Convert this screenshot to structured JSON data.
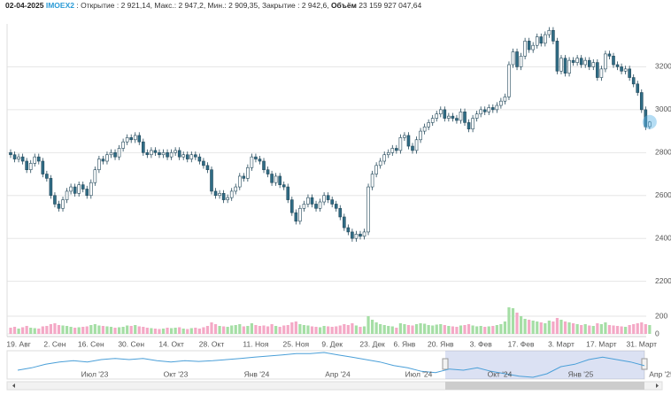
{
  "header": {
    "date": "02-04-2025",
    "ticker": "IMOEX2",
    "info": ": Открытие : 2 921,14, Макс.: 2 947,2, Мин.: 2 909,35, Закрытие : 2 942,6,",
    "volume_label": "Объём",
    "volume": "23 159 927 047,64"
  },
  "chart_data": {
    "type": "candlestick",
    "categories": [
      null,
      null,
      "19. Авг",
      null,
      null,
      null,
      null,
      null,
      null,
      null,
      null,
      "2. Сен",
      null,
      null,
      null,
      null,
      null,
      null,
      null,
      null,
      "16. Сен",
      null,
      null,
      null,
      null,
      null,
      null,
      null,
      null,
      null,
      "30. Сен",
      null,
      null,
      null,
      null,
      null,
      null,
      null,
      null,
      null,
      "14. Окт",
      null,
      null,
      null,
      null,
      null,
      null,
      null,
      null,
      null,
      "28. Окт",
      null,
      null,
      null,
      null,
      null,
      null,
      null,
      null,
      null,
      null,
      "11. Ноя",
      null,
      null,
      null,
      null,
      null,
      null,
      null,
      null,
      null,
      "25. Ноя",
      null,
      null,
      null,
      null,
      null,
      null,
      null,
      null,
      "9. Дек",
      null,
      null,
      null,
      null,
      null,
      null,
      null,
      null,
      null,
      "23. Дек",
      null,
      null,
      null,
      null,
      null,
      null,
      null,
      "6. Янв",
      null,
      null,
      null,
      null,
      null,
      null,
      null,
      null,
      "20. Янв",
      null,
      null,
      null,
      null,
      null,
      null,
      null,
      null,
      null,
      "3. Фев",
      null,
      null,
      null,
      null,
      null,
      null,
      null,
      null,
      null,
      "17. Фев",
      null,
      null,
      null,
      null,
      null,
      null,
      null,
      null,
      null,
      "3. Март",
      null,
      null,
      null,
      null,
      null,
      null,
      null,
      null,
      null,
      "17. Март",
      null,
      null,
      null,
      null,
      null,
      null,
      null,
      null,
      null,
      "31. Март",
      null,
      null
    ],
    "open": [
      2800,
      2790,
      2770,
      2780,
      2760,
      2720,
      2750,
      2780,
      2760,
      2700,
      2680,
      2600,
      2560,
      2540,
      2580,
      2620,
      2640,
      2610,
      2650,
      2630,
      2600,
      2660,
      2720,
      2770,
      2760,
      2790,
      2800,
      2780,
      2820,
      2850,
      2870,
      2860,
      2880,
      2850,
      2800,
      2790,
      2810,
      2800,
      2790,
      2800,
      2780,
      2800,
      2810,
      2780,
      2790,
      2770,
      2790,
      2780,
      2760,
      2740,
      2720,
      2620,
      2600,
      2610,
      2580,
      2590,
      2620,
      2640,
      2690,
      2680,
      2730,
      2780,
      2770,
      2760,
      2720,
      2700,
      2660,
      2690,
      2650,
      2640,
      2580,
      2520,
      2480,
      2540,
      2560,
      2590,
      2560,
      2540,
      2570,
      2600,
      2580,
      2560,
      2540,
      2500,
      2450,
      2430,
      2400,
      2420,
      2410,
      2430,
      2640,
      2700,
      2740,
      2760,
      2790,
      2800,
      2820,
      2810,
      2870,
      2880,
      2830,
      2810,
      2860,
      2900,
      2920,
      2940,
      2960,
      2980,
      3000,
      2960,
      2970,
      2960,
      2950,
      2990,
      2940,
      2910,
      2960,
      2980,
      3000,
      2990,
      3010,
      3000,
      3020,
      3040,
      3060,
      3210,
      3270,
      3200,
      3250,
      3320,
      3280,
      3300,
      3340,
      3310,
      3350,
      3370,
      3320,
      3180,
      3240,
      3170,
      3230,
      3220,
      3240,
      3210,
      3230,
      3200,
      3220,
      3150,
      3190,
      3260,
      3250,
      3210,
      3200,
      3180,
      3190,
      3150,
      3120,
      3080,
      3000,
      2921.14
    ],
    "high": [
      2815,
      2805,
      2795,
      2795,
      2775,
      2765,
      2795,
      2795,
      2775,
      2715,
      2695,
      2615,
      2575,
      2595,
      2635,
      2655,
      2655,
      2665,
      2665,
      2645,
      2675,
      2735,
      2785,
      2785,
      2805,
      2815,
      2815,
      2835,
      2865,
      2885,
      2885,
      2895,
      2895,
      2865,
      2815,
      2825,
      2825,
      2815,
      2815,
      2815,
      2815,
      2825,
      2825,
      2805,
      2805,
      2805,
      2805,
      2795,
      2775,
      2755,
      2735,
      2635,
      2625,
      2625,
      2605,
      2635,
      2655,
      2705,
      2705,
      2745,
      2795,
      2795,
      2785,
      2775,
      2735,
      2715,
      2705,
      2705,
      2665,
      2655,
      2595,
      2535,
      2555,
      2575,
      2605,
      2605,
      2575,
      2585,
      2615,
      2615,
      2595,
      2575,
      2555,
      2515,
      2465,
      2445,
      2435,
      2435,
      2445,
      2655,
      2715,
      2755,
      2775,
      2805,
      2815,
      2835,
      2835,
      2885,
      2895,
      2895,
      2845,
      2875,
      2915,
      2935,
      2955,
      2975,
      2995,
      3015,
      3015,
      2985,
      2985,
      2975,
      3005,
      3005,
      2955,
      2975,
      2995,
      3015,
      3015,
      3025,
      3025,
      3035,
      3055,
      3075,
      3225,
      3285,
      3285,
      3265,
      3335,
      3335,
      3315,
      3355,
      3355,
      3365,
      3385,
      3385,
      3335,
      3255,
      3255,
      3245,
      3245,
      3255,
      3255,
      3245,
      3245,
      3235,
      3235,
      3205,
      3275,
      3275,
      3265,
      3225,
      3215,
      3205,
      3205,
      3165,
      3135,
      3095,
      3015,
      2947.2
    ],
    "low": [
      2775,
      2755,
      2755,
      2745,
      2705,
      2705,
      2735,
      2745,
      2685,
      2665,
      2585,
      2545,
      2525,
      2525,
      2565,
      2605,
      2595,
      2595,
      2615,
      2585,
      2585,
      2645,
      2705,
      2745,
      2745,
      2775,
      2765,
      2765,
      2805,
      2835,
      2845,
      2845,
      2835,
      2785,
      2775,
      2775,
      2785,
      2775,
      2775,
      2765,
      2765,
      2785,
      2765,
      2765,
      2755,
      2755,
      2765,
      2745,
      2725,
      2705,
      2605,
      2585,
      2585,
      2565,
      2565,
      2575,
      2605,
      2625,
      2665,
      2665,
      2715,
      2755,
      2745,
      2705,
      2685,
      2645,
      2645,
      2635,
      2625,
      2565,
      2505,
      2465,
      2465,
      2525,
      2545,
      2545,
      2525,
      2525,
      2555,
      2565,
      2545,
      2525,
      2485,
      2435,
      2415,
      2385,
      2385,
      2395,
      2395,
      2415,
      2625,
      2685,
      2725,
      2745,
      2775,
      2785,
      2795,
      2795,
      2855,
      2815,
      2795,
      2795,
      2845,
      2885,
      2905,
      2925,
      2945,
      2965,
      2945,
      2945,
      2945,
      2935,
      2935,
      2925,
      2895,
      2895,
      2945,
      2965,
      2975,
      2975,
      2985,
      2985,
      3005,
      3025,
      3045,
      3195,
      3185,
      3185,
      3235,
      3265,
      3265,
      3285,
      3295,
      3295,
      3335,
      3305,
      3165,
      3165,
      3155,
      3155,
      3205,
      3205,
      3195,
      3195,
      3185,
      3185,
      3135,
      3135,
      3175,
      3235,
      3195,
      3185,
      3165,
      3165,
      3135,
      3105,
      3065,
      2985,
      2905,
      2909.35
    ],
    "close": [
      2790,
      2770,
      2780,
      2760,
      2720,
      2750,
      2780,
      2760,
      2700,
      2680,
      2600,
      2560,
      2540,
      2580,
      2620,
      2640,
      2610,
      2650,
      2630,
      2600,
      2660,
      2720,
      2770,
      2760,
      2790,
      2800,
      2780,
      2820,
      2850,
      2870,
      2860,
      2880,
      2850,
      2800,
      2790,
      2810,
      2800,
      2790,
      2800,
      2780,
      2800,
      2810,
      2780,
      2790,
      2770,
      2790,
      2780,
      2760,
      2740,
      2720,
      2620,
      2600,
      2610,
      2580,
      2590,
      2620,
      2640,
      2690,
      2680,
      2730,
      2780,
      2770,
      2760,
      2720,
      2700,
      2660,
      2690,
      2650,
      2640,
      2580,
      2520,
      2480,
      2540,
      2560,
      2590,
      2560,
      2540,
      2570,
      2600,
      2580,
      2560,
      2540,
      2500,
      2450,
      2430,
      2400,
      2420,
      2410,
      2430,
      2640,
      2700,
      2740,
      2760,
      2790,
      2800,
      2820,
      2810,
      2870,
      2880,
      2830,
      2810,
      2860,
      2900,
      2920,
      2940,
      2960,
      2980,
      3000,
      2960,
      2970,
      2960,
      2950,
      2990,
      2940,
      2910,
      2960,
      2980,
      3000,
      2990,
      3010,
      3000,
      3020,
      3040,
      3060,
      3210,
      3270,
      3200,
      3250,
      3320,
      3280,
      3300,
      3340,
      3310,
      3350,
      3370,
      3320,
      3180,
      3240,
      3170,
      3230,
      3220,
      3240,
      3210,
      3230,
      3200,
      3220,
      3150,
      3190,
      3260,
      3250,
      3210,
      3200,
      3180,
      3190,
      3150,
      3120,
      3080,
      3000,
      2920,
      2942.6
    ],
    "volumes": [
      70,
      80,
      60,
      75,
      90,
      70,
      65,
      60,
      85,
      90,
      110,
      120,
      100,
      95,
      90,
      80,
      70,
      75,
      80,
      85,
      100,
      110,
      95,
      90,
      85,
      80,
      70,
      75,
      80,
      95,
      90,
      100,
      85,
      80,
      70,
      65,
      60,
      55,
      60,
      70,
      65,
      70,
      75,
      60,
      55,
      65,
      70,
      60,
      75,
      90,
      130,
      110,
      90,
      85,
      80,
      95,
      100,
      110,
      85,
      90,
      120,
      100,
      90,
      95,
      85,
      110,
      90,
      80,
      95,
      100,
      130,
      140,
      110,
      100,
      95,
      85,
      80,
      75,
      90,
      85,
      80,
      85,
      95,
      110,
      100,
      120,
      95,
      80,
      85,
      200,
      160,
      130,
      110,
      100,
      90,
      85,
      70,
      120,
      110,
      100,
      95,
      110,
      120,
      115,
      100,
      95,
      105,
      110,
      100,
      90,
      85,
      80,
      95,
      100,
      110,
      95,
      85,
      90,
      80,
      85,
      90,
      100,
      110,
      140,
      300,
      290,
      240,
      200,
      170,
      160,
      150,
      140,
      130,
      120,
      150,
      140,
      180,
      160,
      140,
      130,
      120,
      110,
      100,
      110,
      95,
      90,
      120,
      110,
      130,
      100,
      95,
      90,
      85,
      80,
      100,
      110,
      120,
      130,
      110,
      100
    ],
    "ylim": [
      2120,
      3400
    ],
    "yticks": [
      2200,
      2400,
      2600,
      2800,
      3000,
      3200
    ],
    "volume_ylim": [
      0,
      400
    ],
    "volume_yticks": [
      0,
      200
    ],
    "up_color": "#ffffff",
    "down_color": "#2f6c85",
    "outline_color": "#24495b",
    "volume_up_color": "#a5dea5",
    "volume_down_color": "#f4a9c6",
    "grid": true
  },
  "navigator": {
    "labels": [
      "Июл '23",
      "Окт '23",
      "Янв '24",
      "Апр '24",
      "Июл '24",
      "Окт '24",
      "Янв '25",
      "Апр '25"
    ],
    "values": [
      2750,
      2850,
      3000,
      3100,
      3150,
      3100,
      3200,
      3250,
      3200,
      3250,
      3150,
      3100,
      3150,
      3120,
      3150,
      3200,
      3250,
      3300,
      3350,
      3400,
      3450,
      3450,
      3500,
      3400,
      3300,
      3200,
      3100,
      2950,
      2850,
      2700,
      2650,
      2800,
      2750,
      2850,
      2700,
      2600,
      2500,
      2450,
      2600,
      2900,
      3000,
      3200,
      3300,
      3200,
      3100,
      2940
    ],
    "color": "#4a9fd8"
  }
}
